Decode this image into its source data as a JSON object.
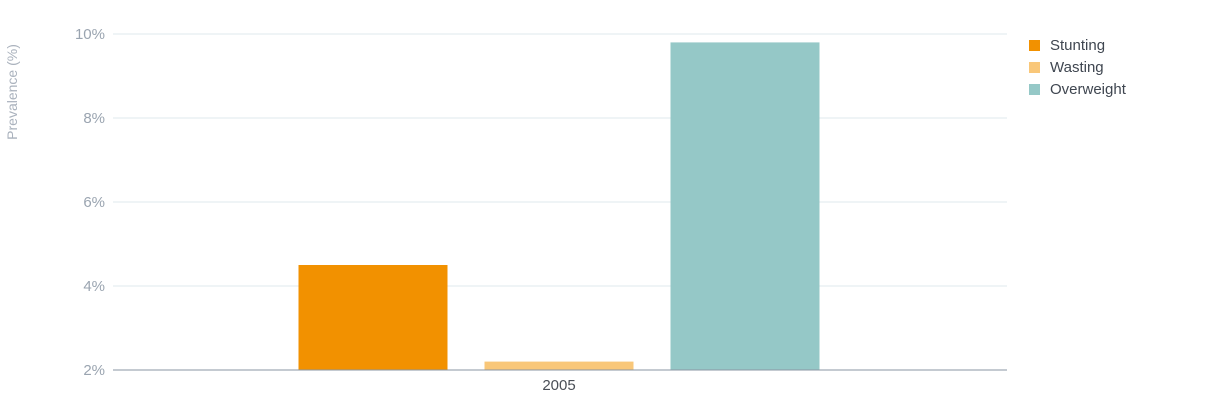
{
  "chart_data": {
    "type": "bar",
    "categories": [
      "2005"
    ],
    "series": [
      {
        "name": "Stunting",
        "values": [
          4.5
        ],
        "color": "#f29100"
      },
      {
        "name": "Wasting",
        "values": [
          2.2
        ],
        "color": "#f9c779"
      },
      {
        "name": "Overweight",
        "values": [
          9.8
        ],
        "color": "#95c8c7"
      }
    ],
    "ylabel": "Prevalence (%)",
    "ylim": [
      2,
      10
    ],
    "yticks": [
      "2%",
      "4%",
      "6%",
      "8%",
      "10%"
    ],
    "grid": true,
    "legend_position": "right"
  }
}
